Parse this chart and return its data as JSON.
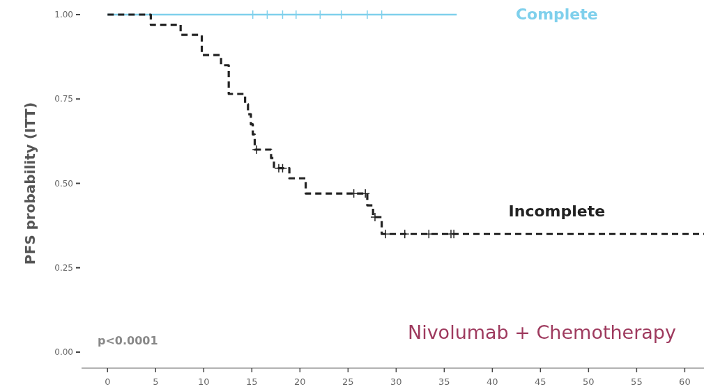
{
  "chart_data": {
    "type": "step",
    "ylabel": "PFS probability (ITT)",
    "xlim": [
      -2.7,
      62
    ],
    "ylim": [
      0,
      1.0
    ],
    "xticks": [
      0,
      5,
      10,
      15,
      20,
      25,
      30,
      35,
      40,
      45,
      50,
      55,
      60
    ],
    "yticks": [
      {
        "value": 0,
        "label": "0.00"
      },
      {
        "value": 0.25,
        "label": "0.25"
      },
      {
        "value": 0.5,
        "label": "0.50"
      },
      {
        "value": 0.75,
        "label": "0.75"
      },
      {
        "value": 1,
        "label": "1.00"
      }
    ],
    "grid": false,
    "annotations": [
      "p<0.0001",
      "Nivolumab + Chemotherapy"
    ],
    "series": [
      {
        "name": "Complete",
        "color": "#7fd0ec",
        "line_style": "solid",
        "x": [
          0,
          36.3
        ],
        "values": [
          1,
          1
        ]
      },
      {
        "name": "Incomplete",
        "color": "#222222",
        "line_style": "dashed",
        "x": [
          0,
          4.5,
          7.6,
          9.8,
          11.8,
          12.6,
          14.3,
          14.6,
          14.9,
          15.1,
          15.3,
          17.0,
          17.3,
          18.9,
          20.6,
          27.0,
          27.6,
          28.5,
          62
        ],
        "values": [
          1,
          0.97,
          0.94,
          0.88,
          0.85,
          0.765,
          0.735,
          0.705,
          0.675,
          0.645,
          0.6,
          0.575,
          0.545,
          0.515,
          0.47,
          0.435,
          0.4,
          0.35,
          0.35
        ]
      },
      {
        "type": "scatter",
        "marker": "cross",
        "color": "#7fd0ec",
        "x": [
          15.1,
          16.6,
          18.2,
          19.6,
          22.1,
          24.3,
          27.0,
          28.5
        ],
        "values": [
          1,
          1,
          1,
          1,
          1,
          1,
          1,
          1
        ]
      },
      {
        "type": "scatter",
        "marker": "cross",
        "color": "#222222",
        "x": [
          15.5,
          17.8,
          18.2,
          25.6,
          26.8,
          27.8,
          28.9,
          30.9,
          33.4,
          35.7,
          36.0
        ],
        "values": [
          0.6,
          0.545,
          0.545,
          0.47,
          0.47,
          0.4,
          0.35,
          0.35,
          0.35,
          0.35,
          0.35
        ]
      }
    ]
  }
}
